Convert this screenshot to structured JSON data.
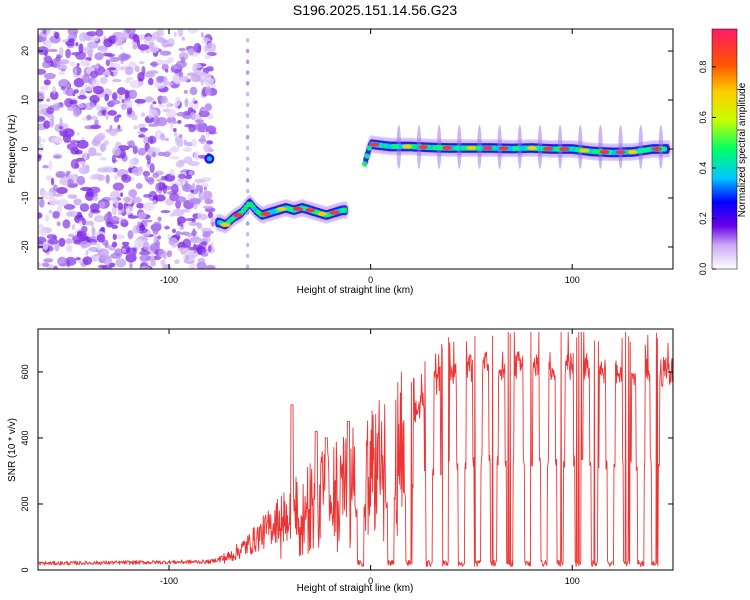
{
  "title": "S196.2025.151.14.56.G23",
  "chart_data": [
    {
      "type": "heatmap",
      "xlabel": "Height of straight line (km)",
      "ylabel": "Frequency (Hz)",
      "xlim": [
        -165,
        150
      ],
      "ylim": [
        -24.5,
        24.5
      ],
      "xticks": [
        -100,
        0,
        100
      ],
      "yticks": [
        -20,
        -10,
        0,
        10,
        20
      ],
      "ridge": {
        "x": [
          -75,
          -72,
          -68,
          -64,
          -60,
          -57,
          -54,
          -50,
          -46,
          -42,
          -38,
          -34,
          -30,
          -26,
          -22,
          -18,
          -14,
          -12,
          -10,
          0,
          10,
          20,
          30,
          40,
          50,
          60,
          70,
          80,
          90,
          100,
          110,
          120,
          130,
          140,
          148
        ],
        "y": [
          -15,
          -15.5,
          -14,
          -13,
          -11,
          -12.5,
          -13.5,
          -13,
          -12.5,
          -12,
          -12.5,
          -12,
          -12.5,
          -13,
          -13.5,
          -13,
          -12.5,
          -12.5,
          -12.5,
          1,
          0.5,
          0.5,
          0.3,
          0.2,
          0.2,
          0.2,
          0.1,
          0.2,
          0,
          0,
          -0.5,
          -0.7,
          -0.6,
          0,
          0
        ]
      },
      "colorbar": {
        "label": "Normalized spectral amplitude",
        "ticks": [
          0,
          0.2,
          0.4,
          0.6,
          0.8
        ],
        "range": [
          0,
          0.95
        ]
      }
    },
    {
      "type": "line",
      "xlabel": "Height of straight line (km)",
      "ylabel": "SNR (10 * v/v)",
      "xlim": [
        -165,
        150
      ],
      "ylim": [
        0,
        730
      ],
      "xticks": [
        -100,
        0,
        100
      ],
      "yticks": [
        0,
        200,
        400,
        600
      ],
      "color": "#ee3333",
      "envelope": {
        "x": [
          -165,
          -80,
          -70,
          -60,
          -50,
          -40,
          -30,
          -20,
          -10,
          0,
          10,
          20,
          30,
          40,
          50,
          60,
          70,
          80,
          90,
          100,
          110,
          120,
          130,
          140,
          150
        ],
        "y": [
          20,
          25,
          40,
          80,
          130,
          190,
          230,
          260,
          300,
          330,
          390,
          450,
          560,
          590,
          610,
          620,
          620,
          620,
          620,
          620,
          610,
          610,
          600,
          600,
          600
        ]
      },
      "spikes": [
        {
          "x": -39,
          "y": 500
        },
        {
          "x": -27,
          "y": 420
        },
        {
          "x": -22,
          "y": 400
        },
        {
          "x": -11,
          "y": 450
        }
      ],
      "dropouts_x": [
        -5,
        10,
        19,
        29,
        37,
        45,
        53,
        61,
        69,
        78,
        86,
        94,
        103,
        111,
        119,
        127,
        134,
        141
      ]
    }
  ]
}
